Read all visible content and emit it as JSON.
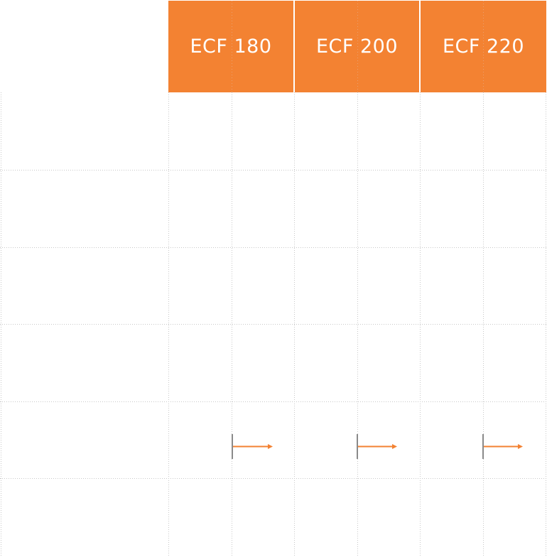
{
  "header": {
    "background": "#F38232",
    "columns": [
      {
        "label": "ECF 180"
      },
      {
        "label": "ECF 200"
      },
      {
        "label": "ECF 220"
      }
    ]
  },
  "row_count": 6,
  "marker": {
    "bar_color": "#8a8a8a",
    "arrow_color": "#F38232",
    "row": 5
  }
}
